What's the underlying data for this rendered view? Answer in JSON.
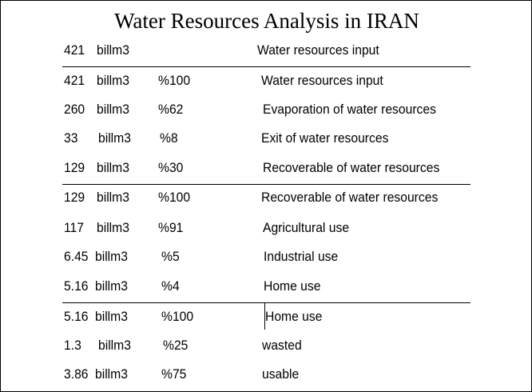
{
  "title": "Water Resources Analysis in IRAN",
  "rows": [
    {
      "value": "421",
      "unit": "billm3",
      "percent": "",
      "label": "Water resources input"
    },
    {
      "value": "421",
      "unit": "billm3",
      "percent": "%100",
      "label": "Water resources input"
    },
    {
      "value": "260",
      "unit": "billm3",
      "percent": "%62",
      "label": "Evaporation of water resources"
    },
    {
      "value": "33",
      "unit": "billm3",
      "percent": "%8",
      "label": "Exit of water resources"
    },
    {
      "value": "129",
      "unit": "billm3",
      "percent": "%30",
      "label": "Recoverable of water resources"
    },
    {
      "value": "129",
      "unit": "billm3",
      "percent": "%100",
      "label": "Recoverable of water resources"
    },
    {
      "value": "117",
      "unit": "billm3",
      "percent": "%91",
      "label": "Agricultural use"
    },
    {
      "value": "6.45",
      "unit": "billm3",
      "percent": "%5",
      "label": "Industrial use"
    },
    {
      "value": "5.16",
      "unit": "billm3",
      "percent": "%4",
      "label": "Home use"
    },
    {
      "value": "5.16",
      "unit": "billm3",
      "percent": "%100",
      "label": "Home use"
    },
    {
      "value": "1.3",
      "unit": "billm3",
      "percent": "%25",
      "label": "wasted"
    },
    {
      "value": "3.86",
      "unit": "billm3",
      "percent": "%75",
      "label": "usable"
    }
  ]
}
